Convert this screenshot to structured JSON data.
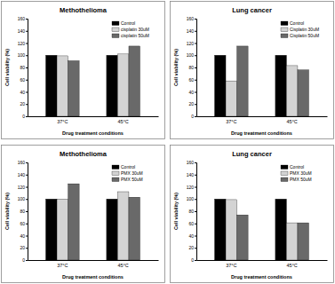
{
  "chart_data": [
    {
      "type": "bar",
      "title": "Methothelioma",
      "x_label": "Drug treatment conditions",
      "y_label": "Cell viability (%)",
      "categories": [
        "37°C",
        "45°C"
      ],
      "series": [
        {
          "name": "Control",
          "color": "#000000",
          "values": [
            100,
            100
          ]
        },
        {
          "name": "cisplatin 30uM",
          "color": "#d3d3d3",
          "values": [
            99,
            102
          ]
        },
        {
          "name": "cisplatin 50uM",
          "color": "#696969",
          "values": [
            91,
            115
          ]
        }
      ],
      "ylim": [
        0,
        160
      ],
      "yticks": [
        0,
        20,
        40,
        60,
        80,
        100,
        120,
        140,
        160
      ],
      "legend": "upper right"
    },
    {
      "type": "bar",
      "title": "Lung cancer",
      "x_label": "Drug treatment conditions",
      "y_label": "Cell viability (%)",
      "categories": [
        "37°C",
        "45°C"
      ],
      "series": [
        {
          "name": "Control",
          "color": "#000000",
          "values": [
            100,
            100
          ]
        },
        {
          "name": "Cisplatin 30uM",
          "color": "#d3d3d3",
          "values": [
            58,
            83
          ]
        },
        {
          "name": "Cisplatin 50uM",
          "color": "#696969",
          "values": [
            115,
            76
          ]
        }
      ],
      "ylim": [
        0,
        160
      ],
      "yticks": [
        0,
        20,
        40,
        60,
        80,
        100,
        120,
        140,
        160
      ],
      "legend": "upper right"
    },
    {
      "type": "bar",
      "title": "Methothelioma",
      "x_label": "Drug treatment conditions",
      "y_label": "Cell viability (%)",
      "categories": [
        "37°C",
        "45°C"
      ],
      "series": [
        {
          "name": "Control",
          "color": "#000000",
          "values": [
            100,
            100
          ]
        },
        {
          "name": "PMX 30uM",
          "color": "#d3d3d3",
          "values": [
            100,
            112
          ]
        },
        {
          "name": "PMX 50uM",
          "color": "#696969",
          "values": [
            125,
            103
          ]
        }
      ],
      "ylim": [
        0,
        160
      ],
      "yticks": [
        0,
        20,
        40,
        60,
        80,
        100,
        120,
        140,
        160
      ],
      "legend": "upper right"
    },
    {
      "type": "bar",
      "title": "Lung cancer",
      "x_label": "Drug treatment conditions",
      "y_label": "Cell viability (%)",
      "categories": [
        "37°C",
        "45°C"
      ],
      "series": [
        {
          "name": "Control",
          "color": "#000000",
          "values": [
            100,
            100
          ]
        },
        {
          "name": "PMX 30uM",
          "color": "#d3d3d3",
          "values": [
            99,
            61
          ]
        },
        {
          "name": "PMX 50uM",
          "color": "#696969",
          "values": [
            74,
            61
          ]
        }
      ],
      "ylim": [
        0,
        160
      ],
      "yticks": [
        0,
        20,
        40,
        60,
        80,
        100,
        120,
        140,
        160
      ],
      "legend": "upper right"
    }
  ]
}
